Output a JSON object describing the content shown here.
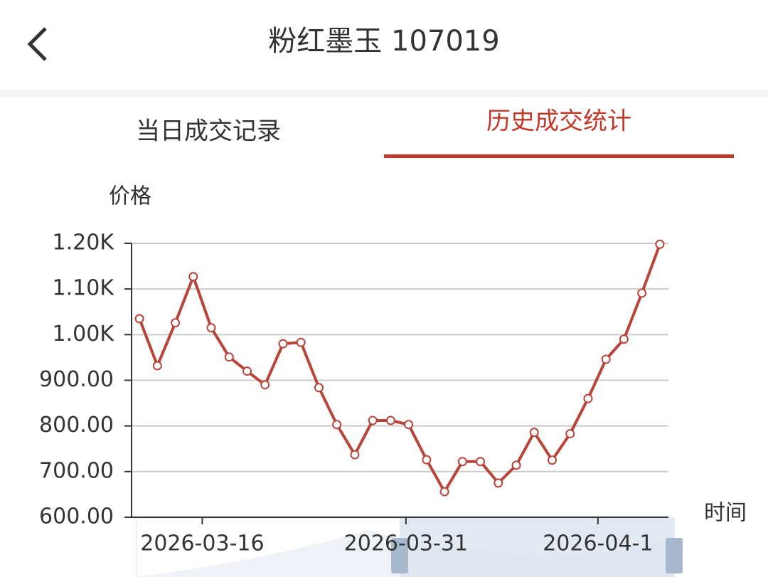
{
  "header": {
    "title": "粉红墨玉 107019"
  },
  "tabs": [
    "当日成交记录",
    "历史成交统计"
  ],
  "chart_data": {
    "type": "line",
    "ylabel": "价格",
    "xlabel": "时间",
    "categories": [
      null,
      null,
      null,
      null,
      null,
      null,
      null,
      null,
      null,
      null,
      null,
      null,
      null,
      null,
      null,
      null,
      null,
      null,
      null,
      null,
      null,
      null,
      null,
      null,
      null,
      null,
      null,
      null,
      null,
      null
    ],
    "series": [
      {
        "name": "价格",
        "color": "#b8443a",
        "values": [
          1035,
          932,
          1026,
          1127,
          1015,
          951,
          920,
          890,
          980,
          983,
          884,
          803,
          737,
          812,
          812,
          803,
          726,
          656,
          722,
          722,
          675,
          714,
          786,
          725,
          783,
          860,
          946,
          990,
          1091,
          1198
        ]
      }
    ],
    "xlim": [
      -0.44,
      29.48
    ],
    "xticks": [
      {
        "value": 3.5,
        "label": "2026-03-16"
      },
      {
        "value": 14.85,
        "label": "2026-03-31"
      },
      {
        "value": 25.55,
        "label": "2026-04-1"
      }
    ],
    "ylim": [
      600,
      1200
    ],
    "yticks": [
      {
        "value": 600,
        "label": "600.00"
      },
      {
        "value": 700,
        "label": "700.00"
      },
      {
        "value": 800,
        "label": "800.00"
      },
      {
        "value": 900,
        "label": "900.00"
      },
      {
        "value": 1000,
        "label": "1.00K"
      },
      {
        "value": 1100,
        "label": "1.10K"
      },
      {
        "value": 1200,
        "label": "1.20K"
      }
    ],
    "grid": true
  }
}
